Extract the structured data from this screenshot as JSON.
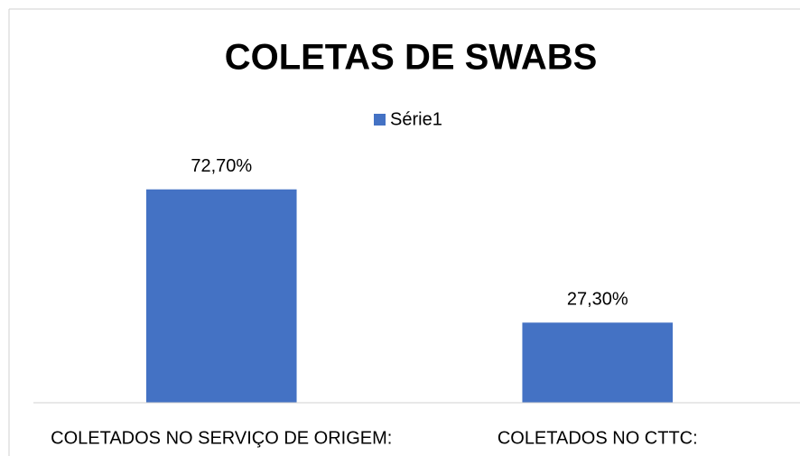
{
  "chart_data": {
    "type": "bar",
    "title": "COLETAS DE SWABS",
    "categories": [
      "COLETADOS NO SERVIÇO DE ORIGEM:",
      "COLETADOS NO CTTC:"
    ],
    "series": [
      {
        "name": "Série1",
        "color": "#4472c4",
        "values": [
          72.7,
          27.3
        ],
        "value_labels": [
          "72,70%",
          "27,30%"
        ]
      }
    ],
    "ylim": [
      0,
      80
    ],
    "legend": "top"
  }
}
